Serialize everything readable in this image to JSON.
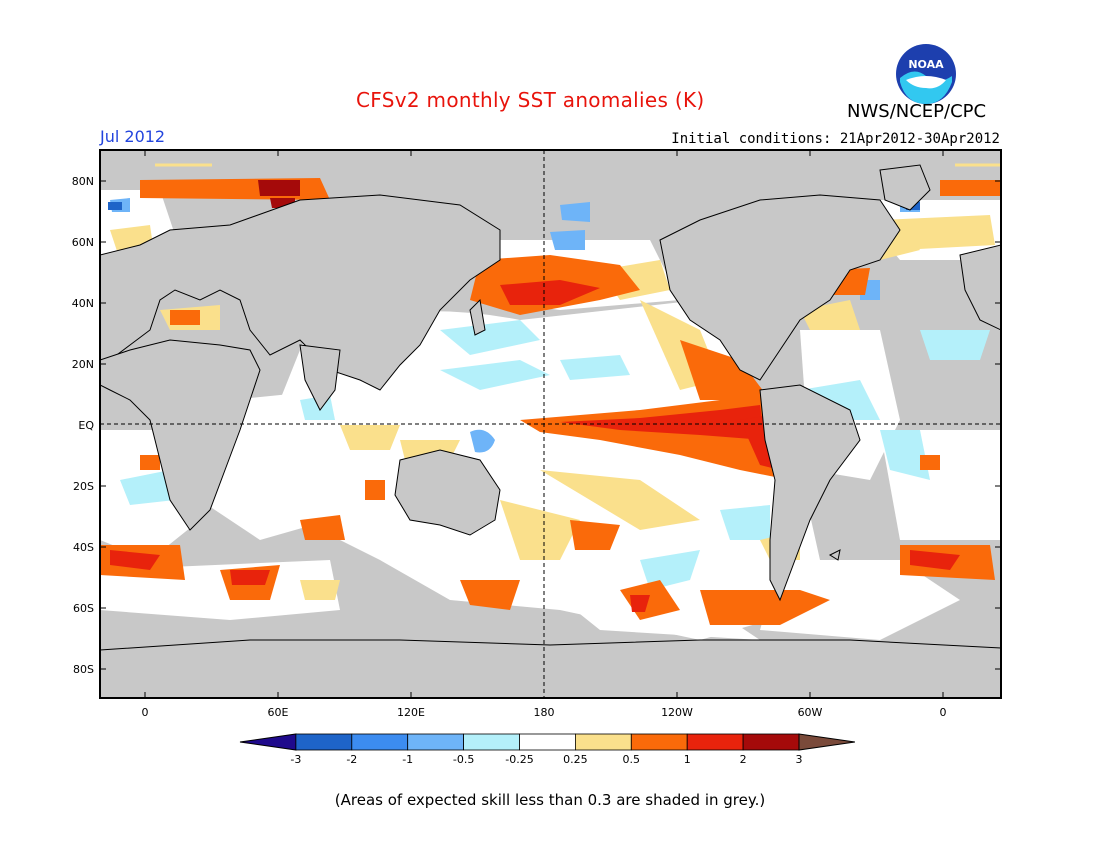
{
  "header": {
    "title": "CFSv2 monthly SST anomalies (K)",
    "period": "Jul 2012",
    "agency": "NWS/NCEP/CPC",
    "logo_text": "NOAA",
    "initial_conditions": "Initial conditions: 21Apr2012-30Apr2012"
  },
  "map": {
    "lat_labels": [
      "80N",
      "60N",
      "40N",
      "20N",
      "EQ",
      "20S",
      "40S",
      "60S",
      "80S"
    ],
    "lon_labels": [
      "0",
      "60E",
      "120E",
      "180",
      "120W",
      "60W",
      "0"
    ],
    "colors": {
      "land": "#c8c8c8",
      "ocean_neutral": "#ffffff",
      "skill_grey": "#c8c8c8",
      "coastline": "#000000"
    }
  },
  "legend": {
    "tick_labels": [
      "-3",
      "-2",
      "-1",
      "-0.5",
      "-0.25",
      "0.25",
      "0.5",
      "1",
      "2",
      "3"
    ],
    "colors": [
      "#1f0a8c",
      "#1e64c8",
      "#3c8cf0",
      "#6eb4f8",
      "#b4f0fa",
      "#ffffff",
      "#fae08c",
      "#fa6a0a",
      "#e8230c",
      "#a50a0a",
      "#7a4a3a"
    ]
  },
  "footnote": "(Areas of expected skill less than 0.3 are shaded in grey.)"
}
